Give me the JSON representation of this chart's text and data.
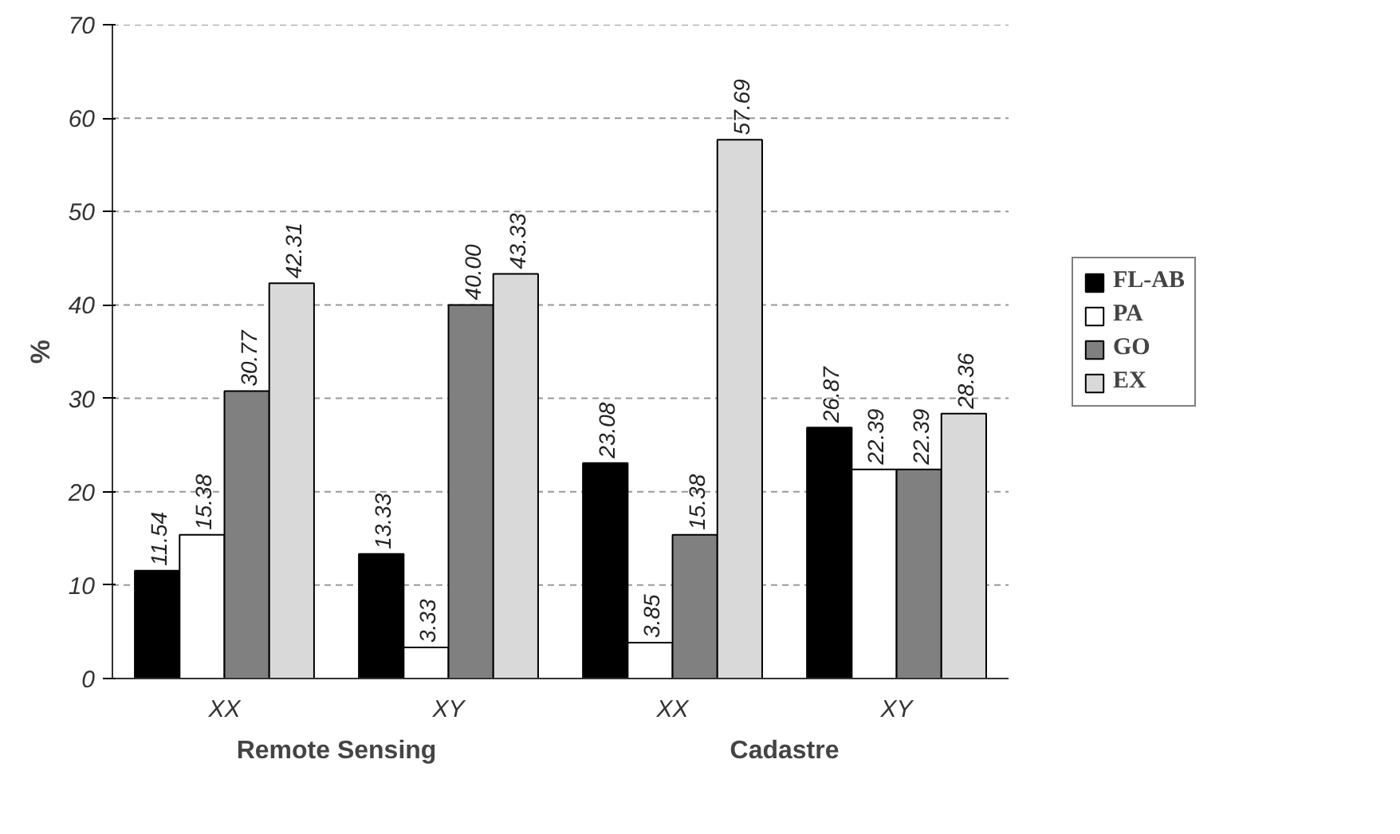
{
  "chart_data": {
    "type": "bar",
    "ylabel": "%",
    "categories": [
      "XX",
      "XY",
      "XX",
      "XY"
    ],
    "series": [
      {
        "name": "FL-AB",
        "color": "#000000",
        "values": [
          11.54,
          13.33,
          23.08,
          26.87
        ],
        "value_labels": [
          "11.54",
          "13.33",
          "23.08",
          "26.87"
        ]
      },
      {
        "name": "PA",
        "color": "#ffffff",
        "values": [
          15.38,
          3.33,
          3.85,
          22.39
        ],
        "value_labels": [
          "15.38",
          "3.33",
          "3.85",
          "22.39"
        ]
      },
      {
        "name": "GO",
        "color": "#808080",
        "values": [
          30.77,
          40.0,
          15.38,
          22.39
        ],
        "value_labels": [
          "30.77",
          "40.00",
          "15.38",
          "22.39"
        ]
      },
      {
        "name": "EX",
        "color": "#d9d9d9",
        "values": [
          42.31,
          43.33,
          57.69,
          28.36
        ],
        "value_labels": [
          "42.31",
          "43.33",
          "57.69",
          "28.36"
        ]
      }
    ],
    "ylim": [
      0,
      70
    ],
    "yticks": [
      0,
      10,
      20,
      30,
      40,
      50,
      60,
      70
    ],
    "grid": "y",
    "legend": "right",
    "annotations": [
      "Remote Sensing",
      "Cadastre"
    ]
  }
}
